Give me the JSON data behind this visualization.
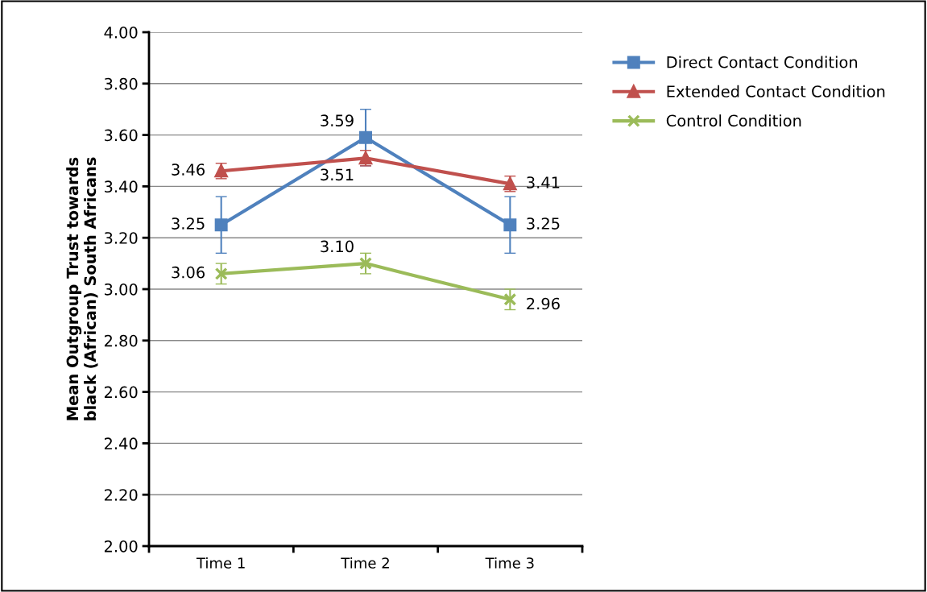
{
  "chart_data": {
    "type": "line",
    "ylabel": "Mean Outgroup Trust towards\nblack (African) South Africans",
    "categories": [
      "Time 1",
      "Time 2",
      "Time 3"
    ],
    "series": [
      {
        "name": "Direct Contact Condition",
        "color": "#4f81bd",
        "marker": "square",
        "values": [
          3.25,
          3.59,
          3.25
        ],
        "value_labels": [
          "3.25",
          "3.59",
          "3.25"
        ],
        "errors": [
          0.11,
          0.11,
          0.11
        ]
      },
      {
        "name": "Extended Contact Condition",
        "color": "#c0504d",
        "marker": "triangle",
        "values": [
          3.46,
          3.51,
          3.41
        ],
        "value_labels": [
          "3.46",
          "3.51",
          "3.41"
        ],
        "errors": [
          0.03,
          0.03,
          0.03
        ]
      },
      {
        "name": "Control Condition",
        "color": "#9bbb59",
        "marker": "cross",
        "values": [
          3.06,
          3.1,
          2.96
        ],
        "value_labels": [
          "3.06",
          "3.10",
          "2.96"
        ],
        "errors": [
          0.04,
          0.04,
          0.04
        ]
      }
    ],
    "ylim": [
      2.0,
      4.0
    ],
    "yticks": [
      {
        "value": 2.0,
        "label": "2.00"
      },
      {
        "value": 2.2,
        "label": "2.20"
      },
      {
        "value": 2.4,
        "label": "2.40"
      },
      {
        "value": 2.6,
        "label": "2.60"
      },
      {
        "value": 2.8,
        "label": "2.80"
      },
      {
        "value": 3.0,
        "label": "3.00"
      },
      {
        "value": 3.2,
        "label": "3.20"
      },
      {
        "value": 3.4,
        "label": "3.40"
      },
      {
        "value": 3.6,
        "label": "3.60"
      },
      {
        "value": 3.8,
        "label": "3.80"
      },
      {
        "value": 4.0,
        "label": "4.00"
      }
    ],
    "grid": "y",
    "legend": "top right",
    "line_style": "solid"
  }
}
